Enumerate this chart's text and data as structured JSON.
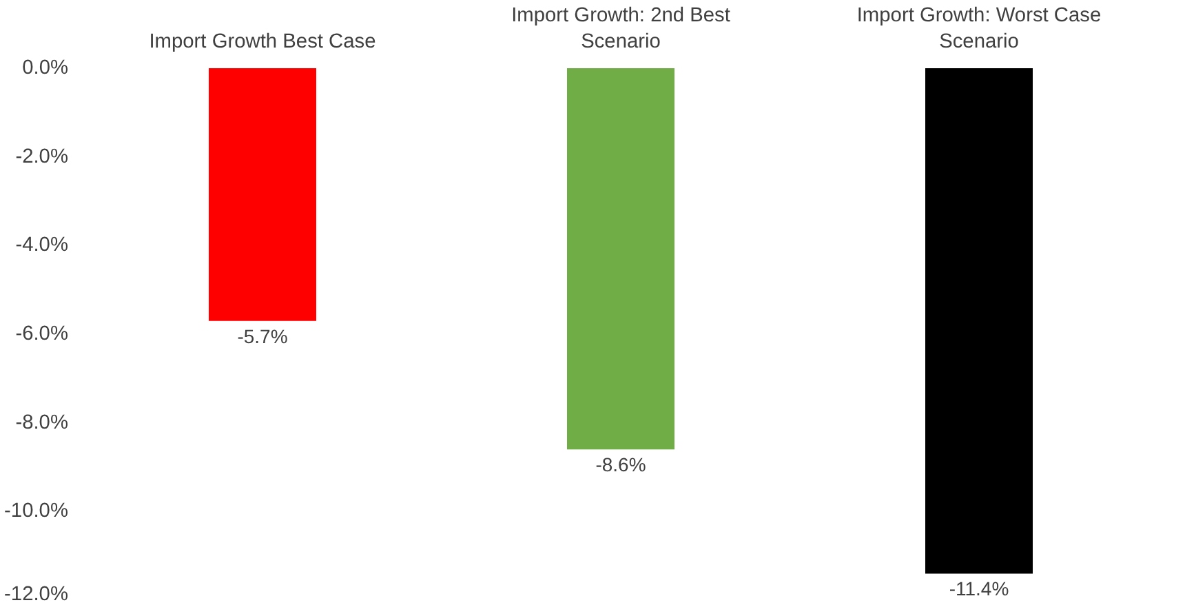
{
  "chart_data": {
    "type": "bar",
    "categories": [
      "Import Growth Best Case",
      "Import Growth: 2nd Best Scenario",
      "Import Growth: Worst Case Scenario"
    ],
    "values": [
      -5.7,
      -8.6,
      -11.4
    ],
    "colors": [
      "#ff0000",
      "#70ad47",
      "#000000"
    ],
    "value_labels": [
      "-5.7%",
      "-8.6%",
      "-11.4%"
    ],
    "ylim": [
      -12,
      0
    ],
    "yticks": [
      {
        "value": 0,
        "label": "0.0%"
      },
      {
        "value": -2,
        "label": "-2.0%"
      },
      {
        "value": -4,
        "label": "-4.0%"
      },
      {
        "value": -6,
        "label": "-6.0%"
      },
      {
        "value": -8,
        "label": "-8.0%"
      },
      {
        "value": -10,
        "label": "-10.0%"
      },
      {
        "value": -12,
        "label": "-12.0%"
      }
    ],
    "grid": false
  }
}
